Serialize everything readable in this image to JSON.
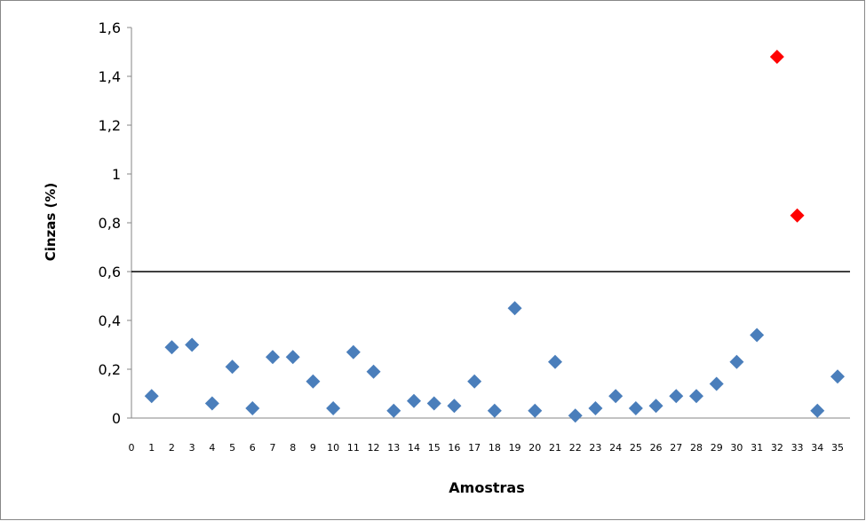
{
  "chart_data": {
    "type": "scatter",
    "xlabel": "Amostras",
    "ylabel": "Cinzas (%)",
    "xlim": [
      0,
      35
    ],
    "ylim": [
      0,
      1.6
    ],
    "x_ticks": [
      "0",
      "1",
      "2",
      "3",
      "4",
      "5",
      "6",
      "7",
      "8",
      "9",
      "10",
      "11",
      "12",
      "13",
      "14",
      "15",
      "16",
      "17",
      "18",
      "19",
      "20",
      "21",
      "22",
      "23",
      "24",
      "25",
      "26",
      "27",
      "28",
      "29",
      "30",
      "31",
      "32",
      "33",
      "34",
      "35"
    ],
    "y_ticks": [
      "0",
      "0,2",
      "0,4",
      "0,6",
      "0,8",
      "1",
      "1,2",
      "1,4",
      "1,6"
    ],
    "threshold": 0.6,
    "grid": false,
    "series": [
      {
        "color": "#4a7ebb",
        "points": [
          [
            1,
            0.09
          ],
          [
            2,
            0.29
          ],
          [
            3,
            0.3
          ],
          [
            4,
            0.06
          ],
          [
            5,
            0.21
          ],
          [
            6,
            0.04
          ],
          [
            7,
            0.25
          ],
          [
            8,
            0.25
          ],
          [
            9,
            0.15
          ],
          [
            10,
            0.04
          ],
          [
            11,
            0.27
          ],
          [
            12,
            0.19
          ],
          [
            13,
            0.03
          ],
          [
            14,
            0.07
          ],
          [
            15,
            0.06
          ],
          [
            16,
            0.05
          ],
          [
            17,
            0.15
          ],
          [
            18,
            0.03
          ],
          [
            19,
            0.45
          ],
          [
            20,
            0.03
          ],
          [
            21,
            0.23
          ],
          [
            22,
            0.01
          ],
          [
            23,
            0.04
          ],
          [
            24,
            0.09
          ],
          [
            25,
            0.04
          ],
          [
            26,
            0.05
          ],
          [
            27,
            0.09
          ],
          [
            28,
            0.09
          ],
          [
            29,
            0.14
          ],
          [
            30,
            0.23
          ],
          [
            31,
            0.34
          ],
          [
            34,
            0.03
          ],
          [
            35,
            0.17
          ]
        ]
      },
      {
        "color": "#ff0000",
        "points": [
          [
            32,
            1.48
          ],
          [
            33,
            0.83
          ]
        ]
      }
    ]
  }
}
